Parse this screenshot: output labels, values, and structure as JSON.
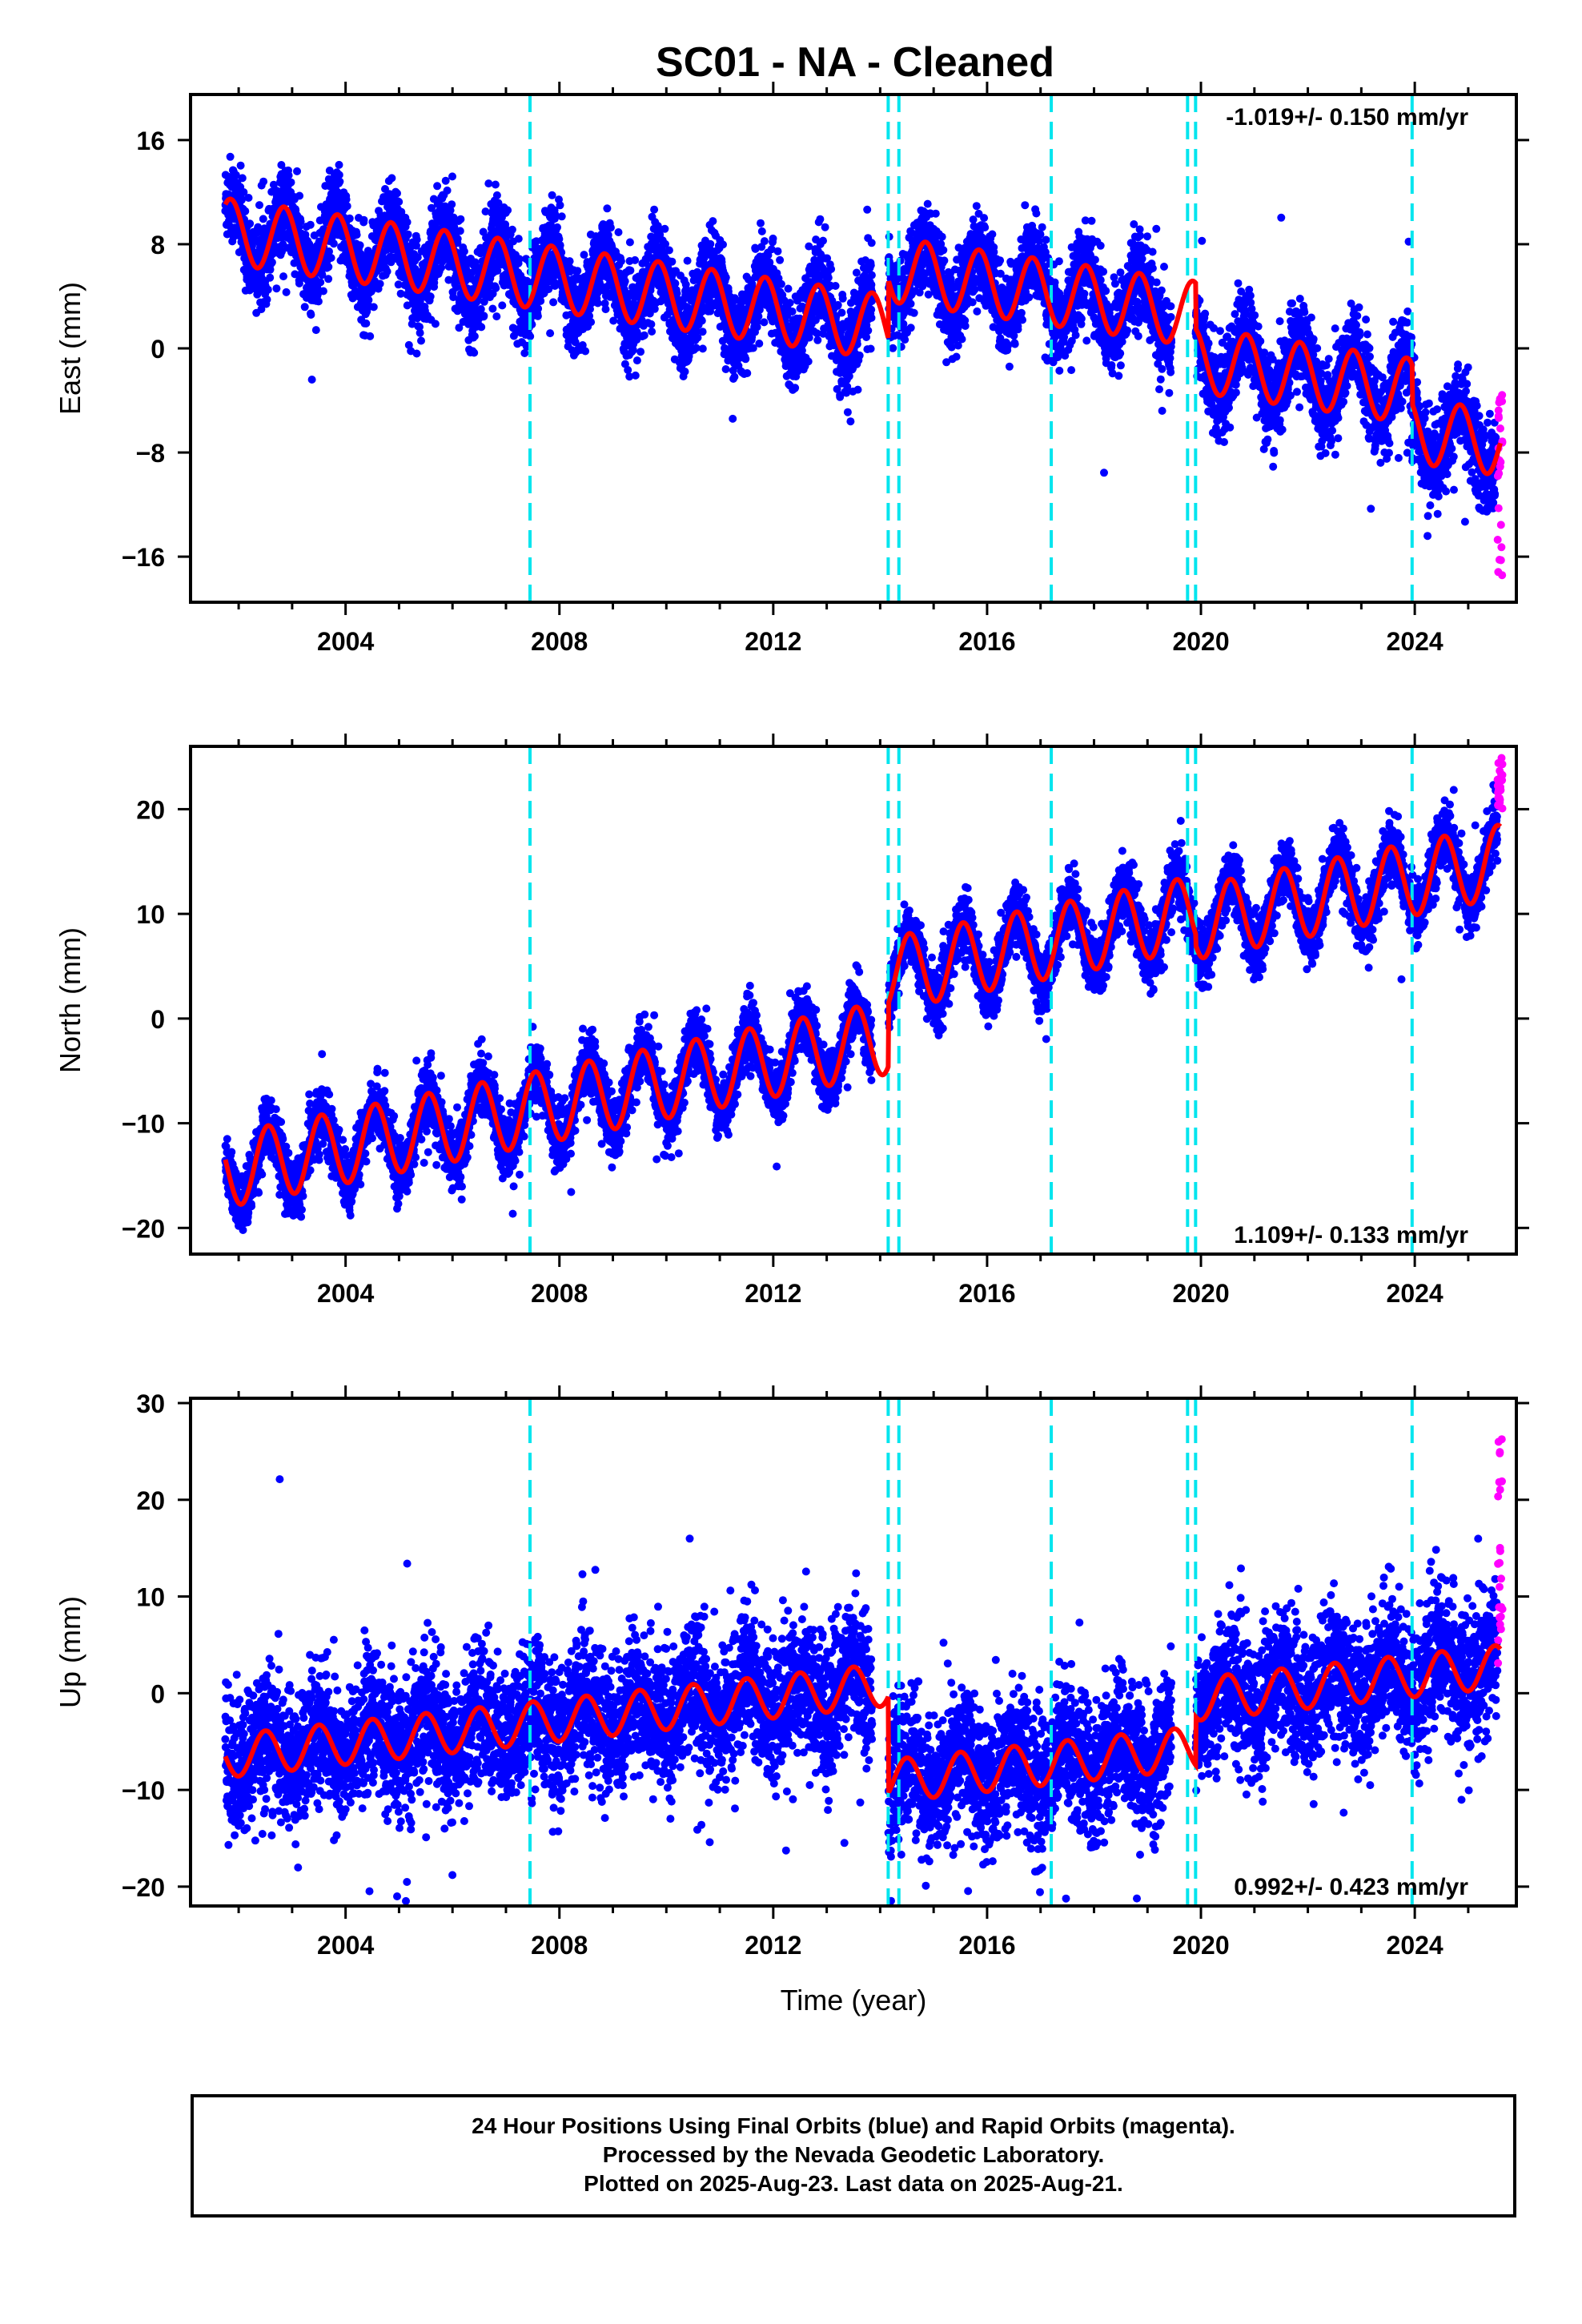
{
  "title": "SC01  - NA - Cleaned",
  "colors": {
    "final_orbits": "#0000ff",
    "rapid_orbits": "#ff00ff",
    "model": "#ff0000",
    "events": "#00e5ee"
  },
  "caption": {
    "line1": "24 Hour Positions Using Final Orbits (blue) and Rapid Orbits (magenta).",
    "line2": "Processed by the Nevada Geodetic Laboratory.",
    "line3": "Plotted on 2025-Aug-23. Last data on 2025-Aug-21."
  },
  "chart_data": [
    {
      "type": "scatter",
      "component": "east",
      "ylabel": "East (mm)",
      "xlabel": "",
      "xlim": [
        2001.1,
        2025.9
      ],
      "ylim": [
        -19.5,
        19.5
      ],
      "xticks": [
        2004,
        2008,
        2012,
        2016,
        2020,
        2024
      ],
      "yticks": [
        -16,
        -8,
        0,
        8,
        16
      ],
      "rate_label": "-1.019+/- 0.150 mm/yr",
      "rate_label_position": "top-right",
      "event_lines": [
        2007.45,
        2014.15,
        2014.35,
        2017.2,
        2019.75,
        2019.9,
        2023.95
      ],
      "model": {
        "offset_at_2001_8": 9.0,
        "rate_mm_per_yr": -0.6,
        "annual_amplitude": 2.5,
        "annual_peak_year_fraction": 0.85,
        "steps": [
          {
            "x": 2014.15,
            "dy": 4.5
          },
          {
            "x": 2019.9,
            "dy": -3.5
          },
          {
            "x": 2023.95,
            "dy": -3.0
          }
        ]
      },
      "series": [
        {
          "name": "Final Orbits (blue)",
          "x_range": [
            2001.75,
            2025.55
          ],
          "scatter_std": 1.6,
          "color": "#0000ff"
        },
        {
          "name": "Rapid Orbits (magenta)",
          "x_range": [
            2025.55,
            2025.64
          ],
          "y_range": [
            -18.5,
            -3.5
          ],
          "color": "#ff00ff"
        }
      ]
    },
    {
      "type": "scatter",
      "component": "north",
      "ylabel": "North (mm)",
      "xlabel": "",
      "xlim": [
        2001.1,
        2025.9
      ],
      "ylim": [
        -22.5,
        26.0
      ],
      "xticks": [
        2004,
        2008,
        2012,
        2016,
        2020,
        2024
      ],
      "yticks": [
        -20,
        -10,
        0,
        10,
        20
      ],
      "rate_label": "1.109+/- 0.133 mm/yr",
      "rate_label_position": "bottom-right",
      "event_lines": [
        2007.45,
        2014.15,
        2014.35,
        2017.2,
        2019.75,
        2019.9,
        2023.95
      ],
      "model": {
        "offset_at_2001_8": -14.5,
        "rate_mm_per_yr": 1.03,
        "annual_amplitude": 3.5,
        "annual_peak_year_fraction": 0.55,
        "steps": [
          {
            "x": 2014.15,
            "dy": 6.0
          },
          {
            "x": 2019.9,
            "dy": -1.0
          }
        ]
      },
      "series": [
        {
          "name": "Final Orbits (blue)",
          "x_range": [
            2001.75,
            2025.55
          ],
          "scatter_std": 1.4,
          "color": "#0000ff"
        },
        {
          "name": "Rapid Orbits (magenta)",
          "x_range": [
            2025.55,
            2025.64
          ],
          "y_range": [
            20.0,
            25.0
          ],
          "color": "#ff00ff"
        }
      ]
    },
    {
      "type": "scatter",
      "component": "up",
      "ylabel": "Up (mm)",
      "xlabel": "Time (year)",
      "xlim": [
        2001.1,
        2025.9
      ],
      "ylim": [
        -22.0,
        30.5
      ],
      "xticks": [
        2004,
        2008,
        2012,
        2016,
        2020,
        2024
      ],
      "yticks": [
        -20,
        -10,
        0,
        10,
        20,
        30
      ],
      "rate_label": "0.992+/- 0.423 mm/yr",
      "rate_label_position": "bottom-right",
      "event_lines": [
        2007.45,
        2014.15,
        2014.35,
        2017.2,
        2019.75,
        2019.9,
        2023.95
      ],
      "model": {
        "offset_at_2001_8": -6.5,
        "rate_mm_per_yr": 0.6,
        "annual_amplitude": 2.2,
        "annual_peak_year_fraction": 0.5,
        "steps": [
          {
            "x": 2014.15,
            "dy": -10.0
          },
          {
            "x": 2019.9,
            "dy": 5.0
          }
        ]
      },
      "series": [
        {
          "name": "Final Orbits (blue)",
          "x_range": [
            2001.75,
            2025.55
          ],
          "scatter_std": 3.4,
          "color": "#0000ff"
        },
        {
          "name": "Rapid Orbits (magenta)",
          "x_range": [
            2025.55,
            2025.64
          ],
          "y_range": [
            3.0,
            27.0
          ],
          "color": "#ff00ff"
        }
      ]
    }
  ]
}
